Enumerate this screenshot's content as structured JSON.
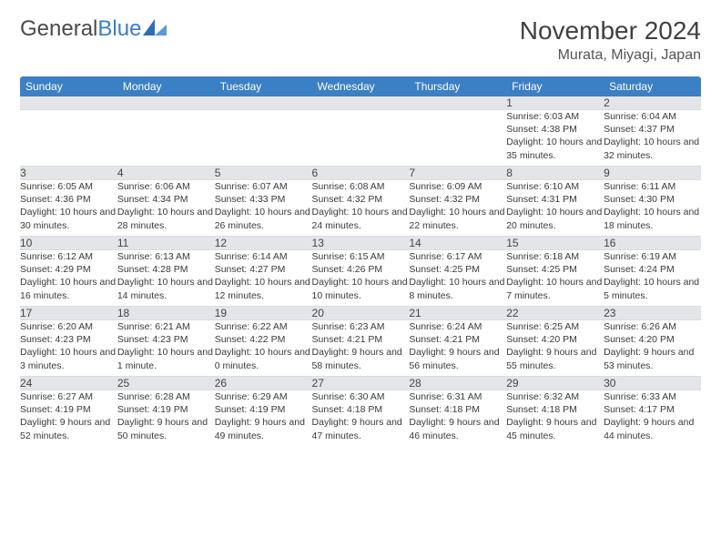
{
  "brand": {
    "part1": "General",
    "part2": "Blue"
  },
  "colors": {
    "header_bg": "#3b7fc4",
    "header_fg": "#ffffff",
    "daynum_bg": "#e3e5e8",
    "text": "#333333",
    "logo_mark": "#2d6db8"
  },
  "title": "November 2024",
  "location": "Murata, Miyagi, Japan",
  "weekdays": [
    "Sunday",
    "Monday",
    "Tuesday",
    "Wednesday",
    "Thursday",
    "Friday",
    "Saturday"
  ],
  "weeks": [
    [
      {
        "n": "",
        "sunrise": "",
        "sunset": "",
        "daylight": ""
      },
      {
        "n": "",
        "sunrise": "",
        "sunset": "",
        "daylight": ""
      },
      {
        "n": "",
        "sunrise": "",
        "sunset": "",
        "daylight": ""
      },
      {
        "n": "",
        "sunrise": "",
        "sunset": "",
        "daylight": ""
      },
      {
        "n": "",
        "sunrise": "",
        "sunset": "",
        "daylight": ""
      },
      {
        "n": "1",
        "sunrise": "Sunrise: 6:03 AM",
        "sunset": "Sunset: 4:38 PM",
        "daylight": "Daylight: 10 hours and 35 minutes."
      },
      {
        "n": "2",
        "sunrise": "Sunrise: 6:04 AM",
        "sunset": "Sunset: 4:37 PM",
        "daylight": "Daylight: 10 hours and 32 minutes."
      }
    ],
    [
      {
        "n": "3",
        "sunrise": "Sunrise: 6:05 AM",
        "sunset": "Sunset: 4:36 PM",
        "daylight": "Daylight: 10 hours and 30 minutes."
      },
      {
        "n": "4",
        "sunrise": "Sunrise: 6:06 AM",
        "sunset": "Sunset: 4:34 PM",
        "daylight": "Daylight: 10 hours and 28 minutes."
      },
      {
        "n": "5",
        "sunrise": "Sunrise: 6:07 AM",
        "sunset": "Sunset: 4:33 PM",
        "daylight": "Daylight: 10 hours and 26 minutes."
      },
      {
        "n": "6",
        "sunrise": "Sunrise: 6:08 AM",
        "sunset": "Sunset: 4:32 PM",
        "daylight": "Daylight: 10 hours and 24 minutes."
      },
      {
        "n": "7",
        "sunrise": "Sunrise: 6:09 AM",
        "sunset": "Sunset: 4:32 PM",
        "daylight": "Daylight: 10 hours and 22 minutes."
      },
      {
        "n": "8",
        "sunrise": "Sunrise: 6:10 AM",
        "sunset": "Sunset: 4:31 PM",
        "daylight": "Daylight: 10 hours and 20 minutes."
      },
      {
        "n": "9",
        "sunrise": "Sunrise: 6:11 AM",
        "sunset": "Sunset: 4:30 PM",
        "daylight": "Daylight: 10 hours and 18 minutes."
      }
    ],
    [
      {
        "n": "10",
        "sunrise": "Sunrise: 6:12 AM",
        "sunset": "Sunset: 4:29 PM",
        "daylight": "Daylight: 10 hours and 16 minutes."
      },
      {
        "n": "11",
        "sunrise": "Sunrise: 6:13 AM",
        "sunset": "Sunset: 4:28 PM",
        "daylight": "Daylight: 10 hours and 14 minutes."
      },
      {
        "n": "12",
        "sunrise": "Sunrise: 6:14 AM",
        "sunset": "Sunset: 4:27 PM",
        "daylight": "Daylight: 10 hours and 12 minutes."
      },
      {
        "n": "13",
        "sunrise": "Sunrise: 6:15 AM",
        "sunset": "Sunset: 4:26 PM",
        "daylight": "Daylight: 10 hours and 10 minutes."
      },
      {
        "n": "14",
        "sunrise": "Sunrise: 6:17 AM",
        "sunset": "Sunset: 4:25 PM",
        "daylight": "Daylight: 10 hours and 8 minutes."
      },
      {
        "n": "15",
        "sunrise": "Sunrise: 6:18 AM",
        "sunset": "Sunset: 4:25 PM",
        "daylight": "Daylight: 10 hours and 7 minutes."
      },
      {
        "n": "16",
        "sunrise": "Sunrise: 6:19 AM",
        "sunset": "Sunset: 4:24 PM",
        "daylight": "Daylight: 10 hours and 5 minutes."
      }
    ],
    [
      {
        "n": "17",
        "sunrise": "Sunrise: 6:20 AM",
        "sunset": "Sunset: 4:23 PM",
        "daylight": "Daylight: 10 hours and 3 minutes."
      },
      {
        "n": "18",
        "sunrise": "Sunrise: 6:21 AM",
        "sunset": "Sunset: 4:23 PM",
        "daylight": "Daylight: 10 hours and 1 minute."
      },
      {
        "n": "19",
        "sunrise": "Sunrise: 6:22 AM",
        "sunset": "Sunset: 4:22 PM",
        "daylight": "Daylight: 10 hours and 0 minutes."
      },
      {
        "n": "20",
        "sunrise": "Sunrise: 6:23 AM",
        "sunset": "Sunset: 4:21 PM",
        "daylight": "Daylight: 9 hours and 58 minutes."
      },
      {
        "n": "21",
        "sunrise": "Sunrise: 6:24 AM",
        "sunset": "Sunset: 4:21 PM",
        "daylight": "Daylight: 9 hours and 56 minutes."
      },
      {
        "n": "22",
        "sunrise": "Sunrise: 6:25 AM",
        "sunset": "Sunset: 4:20 PM",
        "daylight": "Daylight: 9 hours and 55 minutes."
      },
      {
        "n": "23",
        "sunrise": "Sunrise: 6:26 AM",
        "sunset": "Sunset: 4:20 PM",
        "daylight": "Daylight: 9 hours and 53 minutes."
      }
    ],
    [
      {
        "n": "24",
        "sunrise": "Sunrise: 6:27 AM",
        "sunset": "Sunset: 4:19 PM",
        "daylight": "Daylight: 9 hours and 52 minutes."
      },
      {
        "n": "25",
        "sunrise": "Sunrise: 6:28 AM",
        "sunset": "Sunset: 4:19 PM",
        "daylight": "Daylight: 9 hours and 50 minutes."
      },
      {
        "n": "26",
        "sunrise": "Sunrise: 6:29 AM",
        "sunset": "Sunset: 4:19 PM",
        "daylight": "Daylight: 9 hours and 49 minutes."
      },
      {
        "n": "27",
        "sunrise": "Sunrise: 6:30 AM",
        "sunset": "Sunset: 4:18 PM",
        "daylight": "Daylight: 9 hours and 47 minutes."
      },
      {
        "n": "28",
        "sunrise": "Sunrise: 6:31 AM",
        "sunset": "Sunset: 4:18 PM",
        "daylight": "Daylight: 9 hours and 46 minutes."
      },
      {
        "n": "29",
        "sunrise": "Sunrise: 6:32 AM",
        "sunset": "Sunset: 4:18 PM",
        "daylight": "Daylight: 9 hours and 45 minutes."
      },
      {
        "n": "30",
        "sunrise": "Sunrise: 6:33 AM",
        "sunset": "Sunset: 4:17 PM",
        "daylight": "Daylight: 9 hours and 44 minutes."
      }
    ]
  ]
}
